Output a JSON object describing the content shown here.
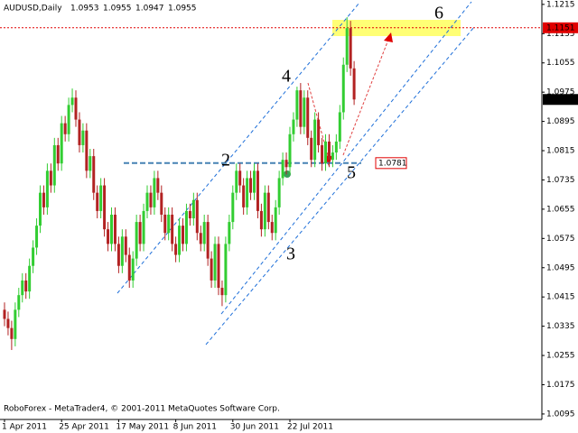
{
  "chart_data": {
    "type": "candlestick",
    "title": "AUDUSD,Daily",
    "quote": [
      1.0953,
      1.0955,
      1.0947,
      1.0955
    ],
    "footer": "RoboForex - MetaTrader4, © 2001-2011 MetaQuotes Software Corp.",
    "wave_labels": [
      "2",
      "3",
      "4",
      "5",
      "6"
    ],
    "up_color": "#32cd32",
    "down_color": "#b22222",
    "ylim": [
      1.008,
      1.1227
    ],
    "yticks": [
      1.1215,
      1.1135,
      1.1055,
      1.0975,
      1.0895,
      1.0815,
      1.0735,
      1.0655,
      1.0575,
      1.0495,
      1.0415,
      1.0335,
      1.0255,
      1.0175,
      1.0095
    ],
    "level_line": 1.0781,
    "ask_line": 1.1151,
    "bid_line": 1.0955,
    "categories": [
      "1 Apr 2011",
      null,
      null,
      null,
      null,
      null,
      null,
      null,
      null,
      null,
      null,
      null,
      null,
      null,
      null,
      null,
      "25 Apr 2011",
      null,
      null,
      null,
      null,
      null,
      null,
      null,
      null,
      null,
      null,
      null,
      null,
      null,
      null,
      null,
      "17 May 2011",
      null,
      null,
      null,
      null,
      null,
      null,
      null,
      null,
      null,
      null,
      null,
      null,
      null,
      null,
      null,
      "8 Jun 2011",
      null,
      null,
      null,
      null,
      null,
      null,
      null,
      null,
      null,
      null,
      null,
      null,
      null,
      null,
      null,
      "30 Jun 2011",
      null,
      null,
      null,
      null,
      null,
      null,
      null,
      null,
      null,
      null,
      null,
      null,
      null,
      null,
      null,
      "22 Jul 2011",
      null,
      null,
      null,
      null,
      null,
      null,
      null,
      null,
      null,
      null,
      null,
      null,
      null,
      null,
      null,
      null,
      null,
      null
    ],
    "series": [
      {
        "name": "AUDUSD",
        "open": [
          1.038,
          1.0355,
          1.033,
          1.03,
          1.038,
          1.042,
          1.046,
          1.043,
          1.05,
          1.055,
          1.061,
          1.07,
          1.066,
          1.076,
          1.072,
          1.083,
          1.078,
          1.089,
          1.086,
          1.094,
          1.096,
          1.09,
          1.083,
          1.087,
          1.076,
          1.08,
          1.07,
          1.065,
          1.072,
          1.06,
          1.056,
          1.064,
          1.056,
          1.05,
          1.058,
          1.053,
          1.046,
          1.052,
          1.062,
          1.056,
          1.065,
          1.07,
          1.066,
          1.074,
          1.07,
          1.064,
          1.059,
          1.064,
          1.056,
          1.053,
          1.061,
          1.056,
          1.065,
          1.063,
          1.068,
          1.059,
          1.056,
          1.062,
          1.052,
          1.046,
          1.056,
          1.044,
          1.042,
          1.056,
          1.062,
          1.07,
          1.076,
          1.072,
          1.066,
          1.074,
          1.07,
          1.076,
          1.065,
          1.06,
          1.07,
          1.062,
          1.059,
          1.066,
          1.074,
          1.079,
          1.077,
          1.086,
          1.09,
          1.098,
          1.088,
          1.096,
          1.085,
          1.079,
          1.09,
          1.083,
          1.078,
          1.084,
          1.079,
          1.081,
          1.084,
          1.092,
          1.105,
          1.115,
          1.104
        ],
        "high": [
          1.04,
          1.0375,
          1.035,
          1.04,
          1.044,
          1.048,
          1.048,
          1.052,
          1.057,
          1.063,
          1.072,
          1.072,
          1.078,
          1.078,
          1.085,
          1.085,
          1.091,
          1.091,
          1.096,
          1.0985,
          1.098,
          1.092,
          1.089,
          1.089,
          1.082,
          1.082,
          1.072,
          1.074,
          1.074,
          1.062,
          1.066,
          1.066,
          1.058,
          1.06,
          1.06,
          1.055,
          1.054,
          1.064,
          1.064,
          1.067,
          1.072,
          1.072,
          1.076,
          1.076,
          1.072,
          1.066,
          1.066,
          1.066,
          1.058,
          1.063,
          1.063,
          1.067,
          1.067,
          1.07,
          1.07,
          1.061,
          1.064,
          1.064,
          1.054,
          1.058,
          1.058,
          1.046,
          1.058,
          1.064,
          1.072,
          1.078,
          1.078,
          1.074,
          1.076,
          1.076,
          1.078,
          1.078,
          1.067,
          1.072,
          1.072,
          1.064,
          1.068,
          1.076,
          1.081,
          1.081,
          1.088,
          1.092,
          1.099,
          1.1,
          1.098,
          1.098,
          1.087,
          1.092,
          1.092,
          1.085,
          1.086,
          1.086,
          1.083,
          1.086,
          1.094,
          1.107,
          1.118,
          1.117,
          1.106
        ],
        "low": [
          1.0335,
          1.031,
          1.027,
          1.028,
          1.036,
          1.04,
          1.041,
          1.041,
          1.048,
          1.053,
          1.059,
          1.064,
          1.064,
          1.07,
          1.07,
          1.076,
          1.076,
          1.084,
          1.084,
          1.092,
          1.088,
          1.081,
          1.081,
          1.074,
          1.074,
          1.068,
          1.063,
          1.063,
          1.058,
          1.054,
          1.054,
          1.054,
          1.048,
          1.048,
          1.051,
          1.044,
          1.044,
          1.05,
          1.054,
          1.054,
          1.063,
          1.064,
          1.064,
          1.068,
          1.062,
          1.057,
          1.057,
          1.054,
          1.051,
          1.051,
          1.054,
          1.054,
          1.061,
          1.061,
          1.057,
          1.054,
          1.054,
          1.05,
          1.044,
          1.044,
          1.042,
          1.039,
          1.04,
          1.054,
          1.06,
          1.068,
          1.07,
          1.064,
          1.064,
          1.068,
          1.068,
          1.063,
          1.058,
          1.058,
          1.06,
          1.057,
          1.057,
          1.064,
          1.072,
          1.075,
          1.075,
          1.084,
          1.088,
          1.086,
          1.086,
          1.083,
          1.077,
          1.077,
          1.081,
          1.076,
          1.076,
          1.077,
          1.077,
          1.079,
          1.082,
          1.09,
          1.103,
          1.102,
          1.094
        ],
        "close": [
          1.0355,
          1.033,
          1.03,
          1.038,
          1.042,
          1.046,
          1.043,
          1.05,
          1.055,
          1.061,
          1.07,
          1.066,
          1.076,
          1.072,
          1.083,
          1.078,
          1.089,
          1.086,
          1.094,
          1.096,
          1.09,
          1.083,
          1.087,
          1.076,
          1.08,
          1.07,
          1.065,
          1.072,
          1.06,
          1.056,
          1.064,
          1.056,
          1.05,
          1.058,
          1.053,
          1.046,
          1.052,
          1.062,
          1.056,
          1.065,
          1.07,
          1.066,
          1.074,
          1.07,
          1.064,
          1.059,
          1.064,
          1.056,
          1.053,
          1.061,
          1.056,
          1.065,
          1.063,
          1.068,
          1.059,
          1.056,
          1.062,
          1.052,
          1.046,
          1.056,
          1.044,
          1.042,
          1.056,
          1.062,
          1.07,
          1.076,
          1.072,
          1.066,
          1.074,
          1.07,
          1.076,
          1.065,
          1.06,
          1.07,
          1.062,
          1.059,
          1.066,
          1.074,
          1.079,
          1.077,
          1.086,
          1.09,
          1.098,
          1.088,
          1.096,
          1.085,
          1.079,
          1.09,
          1.083,
          1.078,
          1.084,
          1.079,
          1.081,
          1.084,
          1.092,
          1.105,
          1.115,
          1.104,
          1.0955
        ]
      }
    ]
  }
}
